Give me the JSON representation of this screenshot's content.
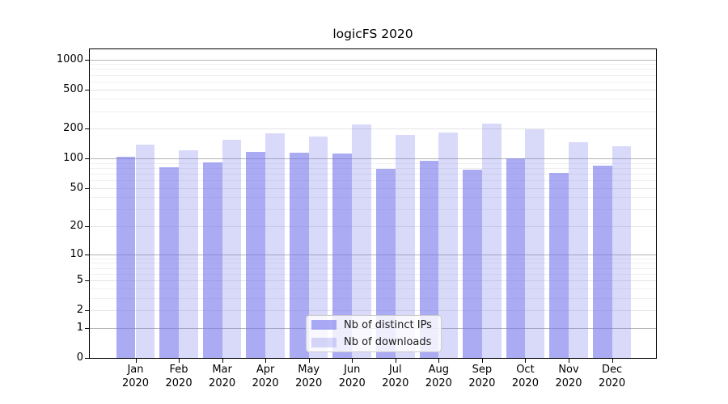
{
  "title": "logicFS 2020",
  "chart_data": {
    "type": "bar",
    "title": "logicFS 2020",
    "scale": "log1p",
    "grid": true,
    "legend_position": "lower center inside plot",
    "year": "2020",
    "categories": [
      "Jan",
      "Feb",
      "Mar",
      "Apr",
      "May",
      "Jun",
      "Jul",
      "Aug",
      "Sep",
      "Oct",
      "Nov",
      "Dec"
    ],
    "series": [
      {
        "name": "Nb of distinct IPs",
        "color": "rgba(119,119,238,0.62)",
        "values": [
          104,
          81,
          92,
          116,
          115,
          112,
          78,
          94,
          77,
          100,
          72,
          84
        ]
      },
      {
        "name": "Nb of downloads",
        "color": "rgba(119,119,238,0.28)",
        "values": [
          138,
          121,
          155,
          180,
          167,
          221,
          172,
          183,
          225,
          199,
          145,
          133
        ]
      }
    ],
    "yticks": [
      0,
      1,
      2,
      5,
      10,
      20,
      50,
      100,
      200,
      500,
      1000
    ],
    "minor_gridlines": [
      3,
      4,
      6,
      7,
      8,
      9,
      30,
      40,
      60,
      70,
      80,
      90,
      300,
      400,
      600,
      700,
      800,
      900
    ],
    "ylim": [
      0,
      1265
    ],
    "xlabel": "",
    "ylabel": ""
  },
  "colors": {
    "bar_dark": "rgba(119,119,238,0.62)",
    "bar_light": "rgba(119,119,238,0.28)",
    "grid_major": "#b3b3b3",
    "grid_labeled": "#e4e4e4",
    "grid_minor": "#f0f0f0",
    "axis": "#000000",
    "legend_border": "#cccccc"
  }
}
